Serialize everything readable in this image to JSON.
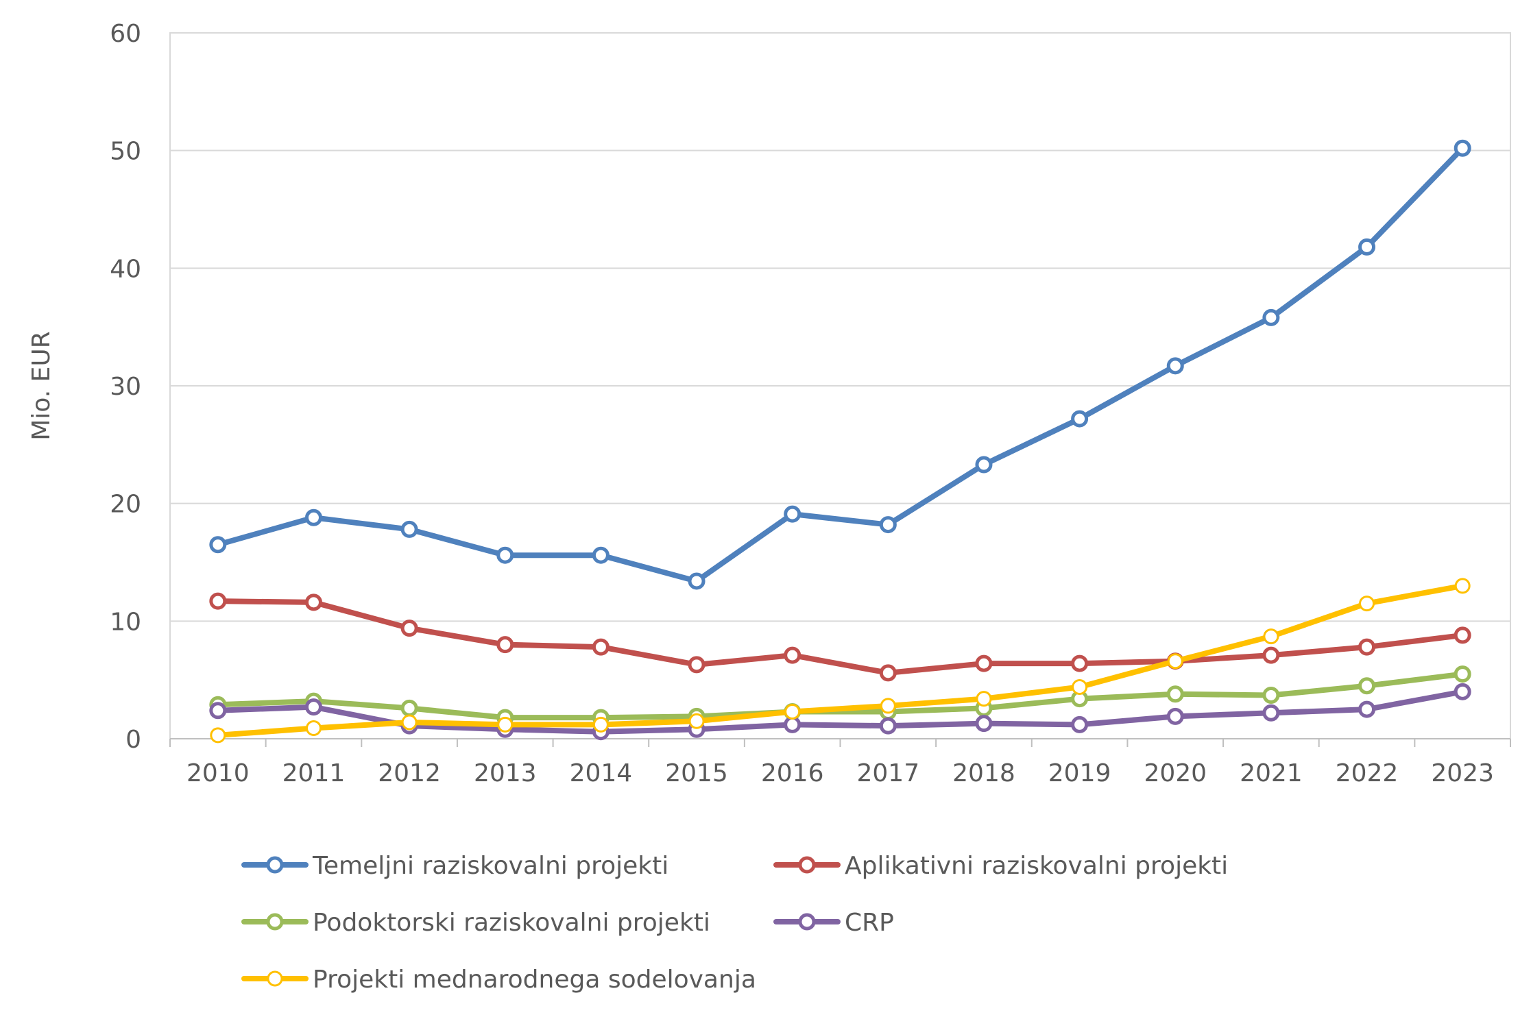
{
  "chart_data": {
    "type": "line",
    "title": "",
    "xlabel": "",
    "ylabel": "Mio. EUR",
    "ylim": [
      0,
      60
    ],
    "yticks": [
      0,
      10,
      20,
      30,
      40,
      50,
      60
    ],
    "grid": true,
    "legend_position": "bottom",
    "categories": [
      "2010",
      "2011",
      "2012",
      "2013",
      "2014",
      "2015",
      "2016",
      "2017",
      "2018",
      "2019",
      "2020",
      "2021",
      "2022",
      "2023"
    ],
    "series": [
      {
        "name": "Temeljni raziskovalni projekti",
        "color": "#4F81BD",
        "values": [
          16.5,
          18.8,
          17.8,
          15.6,
          15.6,
          13.4,
          19.1,
          18.2,
          23.3,
          27.2,
          31.7,
          35.8,
          41.8,
          50.2
        ]
      },
      {
        "name": "Aplikativni raziskovalni projekti",
        "color": "#C0504D",
        "values": [
          11.7,
          11.6,
          9.4,
          8.0,
          7.8,
          6.3,
          7.1,
          5.6,
          6.4,
          6.4,
          6.6,
          7.1,
          7.8,
          8.8
        ]
      },
      {
        "name": "Podoktorski raziskovalni projekti",
        "color": "#9BBB59",
        "values": [
          2.9,
          3.2,
          2.6,
          1.8,
          1.8,
          1.9,
          2.3,
          2.3,
          2.6,
          3.4,
          3.8,
          3.7,
          4.5,
          5.5
        ]
      },
      {
        "name": "CRP",
        "color": "#8064A2",
        "values": [
          2.4,
          2.7,
          1.1,
          0.8,
          0.6,
          0.8,
          1.2,
          1.1,
          1.3,
          1.2,
          1.9,
          2.2,
          2.5,
          4.0
        ]
      },
      {
        "name": "Projekti mednarodnega sodelovanja",
        "color": "#FFC000",
        "values": [
          0.3,
          0.9,
          1.4,
          1.2,
          1.2,
          1.5,
          2.3,
          2.8,
          3.4,
          4.4,
          6.6,
          8.7,
          11.5,
          13.0
        ]
      }
    ]
  }
}
